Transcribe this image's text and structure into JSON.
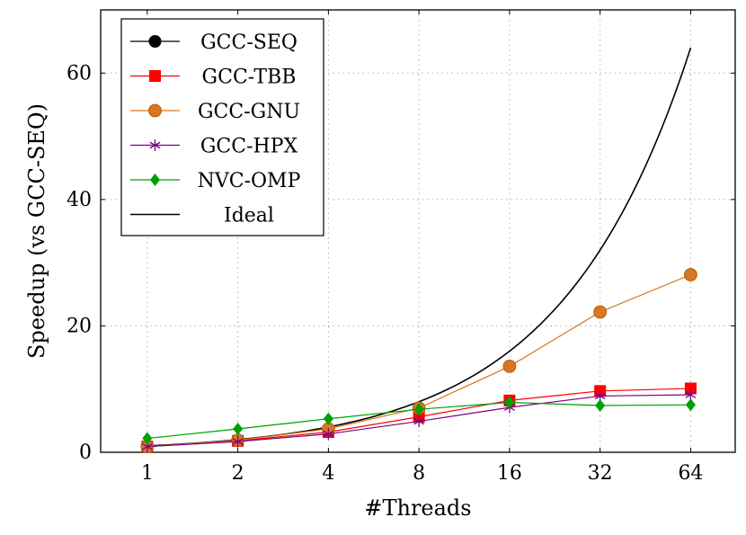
{
  "chart_data": {
    "type": "line",
    "xlabel": "#Threads",
    "ylabel": "Speedup (vs GCC-SEQ)",
    "x_scale": "log2",
    "categories": [
      "1",
      "2",
      "4",
      "8",
      "16",
      "32",
      "64"
    ],
    "x": [
      1,
      2,
      4,
      8,
      16,
      32,
      64
    ],
    "xlim": [
      0.7,
      90
    ],
    "ylim": [
      0,
      70
    ],
    "yticks": [
      0,
      20,
      40,
      60
    ],
    "grid": "dotted",
    "legend_position": "top-left",
    "series": [
      {
        "name": "GCC-SEQ",
        "color": "#000000",
        "marker": "circle",
        "x": [
          1
        ],
        "values": [
          1
        ]
      },
      {
        "name": "GCC-TBB",
        "color": "#ff0000",
        "marker": "square",
        "x": [
          1,
          2,
          4,
          8,
          16,
          32,
          64
        ],
        "values": [
          0.9,
          1.8,
          3.2,
          5.6,
          8.2,
          9.7,
          10.1
        ]
      },
      {
        "name": "GCC-GNU",
        "color": "#d9761e",
        "marker": "circle",
        "x": [
          1,
          2,
          4,
          8,
          16,
          32,
          64
        ],
        "values": [
          0.9,
          1.9,
          3.7,
          7.0,
          13.6,
          22.2,
          28.1
        ]
      },
      {
        "name": "GCC-HPX",
        "color": "#800080",
        "marker": "star",
        "x": [
          1,
          2,
          4,
          8,
          16,
          32,
          64
        ],
        "values": [
          0.9,
          1.7,
          2.9,
          4.9,
          7.1,
          8.9,
          9.1
        ]
      },
      {
        "name": "NVC-OMP",
        "color": "#00a000",
        "marker": "diamond",
        "x": [
          1,
          2,
          4,
          8,
          16,
          32,
          64
        ],
        "values": [
          2.2,
          3.7,
          5.3,
          6.8,
          7.9,
          7.4,
          7.5
        ]
      },
      {
        "name": "Ideal",
        "color": "#000000",
        "marker": "none",
        "x": [
          1,
          2,
          4,
          8,
          16,
          32,
          64
        ],
        "values": [
          1,
          2,
          4,
          8,
          16,
          32,
          64
        ]
      }
    ]
  }
}
